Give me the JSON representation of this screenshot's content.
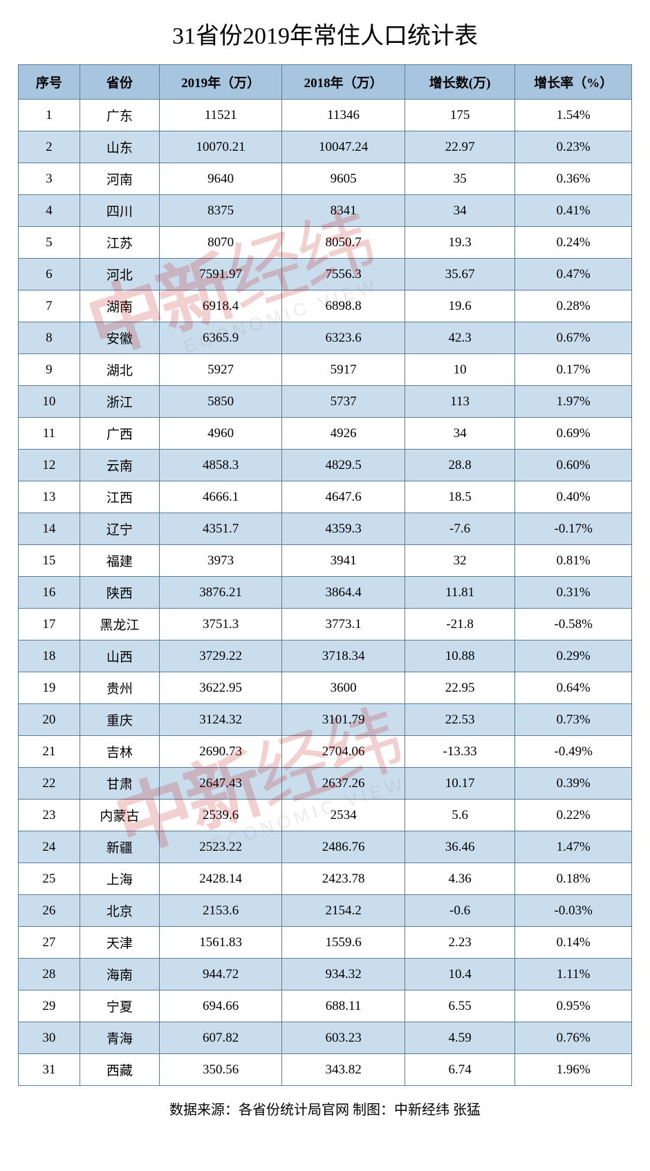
{
  "title": "31省份2019年常住人口统计表",
  "table": {
    "type": "table",
    "header_bg": "#a7c5de",
    "row_odd_bg": "#ffffff",
    "row_even_bg": "#cadded",
    "border_color": "#5a7d9a",
    "text_color": "#000000",
    "font_size": 19,
    "columns": [
      {
        "key": "seq",
        "label": "序号",
        "width": "10%"
      },
      {
        "key": "province",
        "label": "省份",
        "width": "13%"
      },
      {
        "key": "y2019",
        "label": "2019年（万）",
        "width": "20%"
      },
      {
        "key": "y2018",
        "label": "2018年（万）",
        "width": "20%"
      },
      {
        "key": "growth_num",
        "label": "增长数(万)",
        "width": "18%"
      },
      {
        "key": "growth_rate",
        "label": "增长率（%）",
        "width": "19%"
      }
    ],
    "rows": [
      [
        "1",
        "广东",
        "11521",
        "11346",
        "175",
        "1.54%"
      ],
      [
        "2",
        "山东",
        "10070.21",
        "10047.24",
        "22.97",
        "0.23%"
      ],
      [
        "3",
        "河南",
        "9640",
        "9605",
        "35",
        "0.36%"
      ],
      [
        "4",
        "四川",
        "8375",
        "8341",
        "34",
        "0.41%"
      ],
      [
        "5",
        "江苏",
        "8070",
        "8050.7",
        "19.3",
        "0.24%"
      ],
      [
        "6",
        "河北",
        "7591.97",
        "7556.3",
        "35.67",
        "0.47%"
      ],
      [
        "7",
        "湖南",
        "6918.4",
        "6898.8",
        "19.6",
        "0.28%"
      ],
      [
        "8",
        "安徽",
        "6365.9",
        "6323.6",
        "42.3",
        "0.67%"
      ],
      [
        "9",
        "湖北",
        "5927",
        "5917",
        "10",
        "0.17%"
      ],
      [
        "10",
        "浙江",
        "5850",
        "5737",
        "113",
        "1.97%"
      ],
      [
        "11",
        "广西",
        "4960",
        "4926",
        "34",
        "0.69%"
      ],
      [
        "12",
        "云南",
        "4858.3",
        "4829.5",
        "28.8",
        "0.60%"
      ],
      [
        "13",
        "江西",
        "4666.1",
        "4647.6",
        "18.5",
        "0.40%"
      ],
      [
        "14",
        "辽宁",
        "4351.7",
        "4359.3",
        "-7.6",
        "-0.17%"
      ],
      [
        "15",
        "福建",
        "3973",
        "3941",
        "32",
        "0.81%"
      ],
      [
        "16",
        "陕西",
        "3876.21",
        "3864.4",
        "11.81",
        "0.31%"
      ],
      [
        "17",
        "黑龙江",
        "3751.3",
        "3773.1",
        "-21.8",
        "-0.58%"
      ],
      [
        "18",
        "山西",
        "3729.22",
        "3718.34",
        "10.88",
        "0.29%"
      ],
      [
        "19",
        "贵州",
        "3622.95",
        "3600",
        "22.95",
        "0.64%"
      ],
      [
        "20",
        "重庆",
        "3124.32",
        "3101.79",
        "22.53",
        "0.73%"
      ],
      [
        "21",
        "吉林",
        "2690.73",
        "2704.06",
        "-13.33",
        "-0.49%"
      ],
      [
        "22",
        "甘肃",
        "2647.43",
        "2637.26",
        "10.17",
        "0.39%"
      ],
      [
        "23",
        "内蒙古",
        "2539.6",
        "2534",
        "5.6",
        "0.22%"
      ],
      [
        "24",
        "新疆",
        "2523.22",
        "2486.76",
        "36.46",
        "1.47%"
      ],
      [
        "25",
        "上海",
        "2428.14",
        "2423.78",
        "4.36",
        "0.18%"
      ],
      [
        "26",
        "北京",
        "2153.6",
        "2154.2",
        "-0.6",
        "-0.03%"
      ],
      [
        "27",
        "天津",
        "1561.83",
        "1559.6",
        "2.23",
        "0.14%"
      ],
      [
        "28",
        "海南",
        "944.72",
        "934.32",
        "10.4",
        "1.11%"
      ],
      [
        "29",
        "宁夏",
        "694.66",
        "688.11",
        "6.55",
        "0.95%"
      ],
      [
        "30",
        "青海",
        "607.82",
        "603.23",
        "4.59",
        "0.76%"
      ],
      [
        "31",
        "西藏",
        "350.56",
        "343.82",
        "6.74",
        "1.96%"
      ]
    ]
  },
  "footer": "数据来源：各省份统计局官网 制图：中新经纬 张猛",
  "watermark": {
    "cn_bold": "中新",
    "cn_thin": "经纬",
    "en": "ECONOMIC VIEW",
    "color_cn": "#c00000",
    "color_en": "#888888",
    "opacity": 0.18,
    "rotation_deg": -18
  }
}
